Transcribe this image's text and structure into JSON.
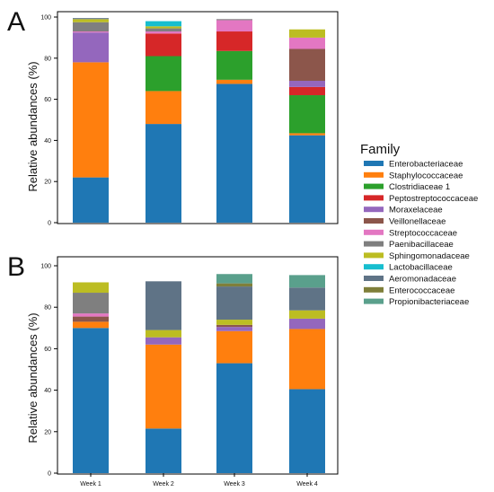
{
  "figure": {
    "legend_title": "Family",
    "families": [
      {
        "name": "Enterobacteriaceae",
        "color": "#1f77b4"
      },
      {
        "name": "Staphylococcaceae",
        "color": "#ff7f0e"
      },
      {
        "name": "Clostridiaceae 1",
        "color": "#2ca02c"
      },
      {
        "name": "Peptostreptococcaceae",
        "color": "#d62728"
      },
      {
        "name": "Moraxelaceae",
        "color": "#9467bd"
      },
      {
        "name": "Veillonellaceae",
        "color": "#8c564b"
      },
      {
        "name": "Streptococcaceae",
        "color": "#e377c2"
      },
      {
        "name": "Paenibacillaceae",
        "color": "#7f7f7f"
      },
      {
        "name": "Sphingomonadaceae",
        "color": "#bcbd22"
      },
      {
        "name": "Lactobacillaceae",
        "color": "#17becf"
      },
      {
        "name": "Aeromonadaceae",
        "color": "#5f7386"
      },
      {
        "name": "Enterococcaceae",
        "color": "#7f7f3a"
      },
      {
        "name": "Propionibacteriaceae",
        "color": "#5aa08c"
      }
    ]
  },
  "chart_data": [
    {
      "type": "bar",
      "panel_label": "A",
      "stacked": true,
      "ylabel": "Relative abundances (%)",
      "ylim": [
        0,
        100
      ],
      "yticks": [
        0,
        20,
        40,
        60,
        80,
        100
      ],
      "categories": [
        "",
        "",
        "",
        ""
      ],
      "grid": false,
      "series": [
        {
          "name": "Enterobacteriaceae",
          "values": [
            22,
            48,
            67.5,
            42.5
          ]
        },
        {
          "name": "Staphylococcaceae",
          "values": [
            56,
            16,
            2,
            1
          ]
        },
        {
          "name": "Clostridiaceae 1",
          "values": [
            0,
            17,
            14,
            18.5
          ]
        },
        {
          "name": "Peptostreptococcaceae",
          "values": [
            0,
            11,
            9.5,
            4
          ]
        },
        {
          "name": "Moraxelaceae",
          "values": [
            14.5,
            0,
            0,
            3
          ]
        },
        {
          "name": "Veillonellaceae",
          "values": [
            0,
            0,
            0,
            15.5
          ]
        },
        {
          "name": "Streptococcaceae",
          "values": [
            0.5,
            1,
            5.5,
            5.5
          ]
        },
        {
          "name": "Paenibacillaceae",
          "values": [
            4.5,
            1.5,
            0.5,
            0
          ]
        },
        {
          "name": "Sphingomonadaceae",
          "values": [
            1.5,
            1,
            0,
            4
          ]
        },
        {
          "name": "Lactobacillaceae",
          "values": [
            0,
            2.5,
            0,
            0
          ]
        },
        {
          "name": "Aeromonadaceae",
          "values": [
            0.5,
            0,
            0,
            0
          ]
        },
        {
          "name": "Enterococcaceae",
          "values": [
            0,
            0,
            0,
            0
          ]
        },
        {
          "name": "Propionibacteriaceae",
          "values": [
            0,
            0,
            0,
            0
          ]
        }
      ]
    },
    {
      "type": "bar",
      "panel_label": "B",
      "stacked": true,
      "ylabel": "Relative abundances (%)",
      "ylim": [
        0,
        100
      ],
      "yticks": [
        0,
        20,
        40,
        60,
        80,
        100
      ],
      "categories": [
        "Week 1",
        "Week 2",
        "Week 3",
        "Week 4"
      ],
      "grid": false,
      "series": [
        {
          "name": "Enterobacteriaceae",
          "values": [
            70,
            21.5,
            53,
            40.5
          ]
        },
        {
          "name": "Staphylococcaceae",
          "values": [
            3,
            40.5,
            15.5,
            29
          ]
        },
        {
          "name": "Clostridiaceae 1",
          "values": [
            0,
            0,
            0,
            0
          ]
        },
        {
          "name": "Peptostreptococcaceae",
          "values": [
            0,
            0,
            0,
            0
          ]
        },
        {
          "name": "Moraxelaceae",
          "values": [
            0,
            3.5,
            2,
            5
          ]
        },
        {
          "name": "Veillonellaceae",
          "values": [
            2.5,
            0,
            1,
            0
          ]
        },
        {
          "name": "Streptococcaceae",
          "values": [
            1.5,
            0,
            0,
            0
          ]
        },
        {
          "name": "Paenibacillaceae",
          "values": [
            10,
            0,
            0,
            0
          ]
        },
        {
          "name": "Sphingomonadaceae",
          "values": [
            5,
            3.5,
            2.5,
            4
          ]
        },
        {
          "name": "Lactobacillaceae",
          "values": [
            0,
            0,
            0,
            0
          ]
        },
        {
          "name": "Aeromonadaceae",
          "values": [
            0,
            23.5,
            16,
            11
          ]
        },
        {
          "name": "Enterococcaceae",
          "values": [
            0,
            0,
            1.5,
            0
          ]
        },
        {
          "name": "Propionibacteriaceae",
          "values": [
            0,
            0,
            4.5,
            6
          ]
        }
      ]
    }
  ]
}
